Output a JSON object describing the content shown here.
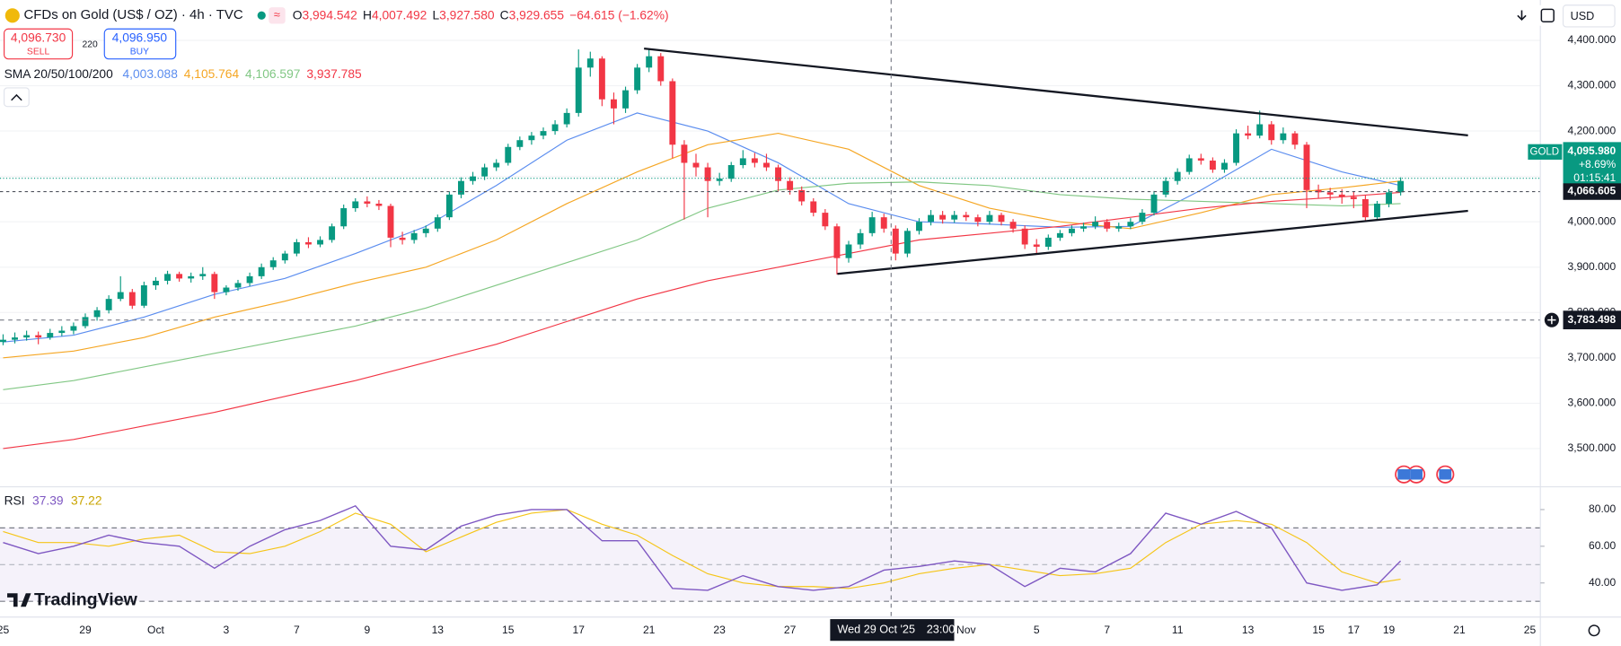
{
  "header": {
    "title": "CFDs on Gold (US$ / OZ) · 4h · TVC",
    "ohlc": [
      {
        "key": "O",
        "value": "3,994.542"
      },
      {
        "key": "H",
        "value": "4,007.492"
      },
      {
        "key": "L",
        "value": "3,927.580"
      },
      {
        "key": "C",
        "value": "3,929.655"
      }
    ],
    "change": "−64.615 (−1.62%)"
  },
  "trade": {
    "sell_price": "4,096.730",
    "sell": "SELL",
    "spread": "220",
    "buy_price": "4,096.950",
    "buy": "BUY"
  },
  "currency": "USD",
  "brand": "TradingView",
  "chart_data": {
    "type": "candlestick",
    "up_color": "#089981",
    "down_color": "#f23645",
    "grid": true,
    "ylim": [
      3418,
      4489
    ],
    "yticks": [
      {
        "value": 4400,
        "label": "4,400.000"
      },
      {
        "value": 4300,
        "label": "4,300.000"
      },
      {
        "value": 4200,
        "label": "4,200.000"
      },
      {
        "value": 4100,
        "label": "4,100.000"
      },
      {
        "value": 4000,
        "label": "4,000.000"
      },
      {
        "value": 3900,
        "label": "3,900.000"
      },
      {
        "value": 3800,
        "label": "3,800.000"
      },
      {
        "value": 3700,
        "label": "3,700.000"
      },
      {
        "value": 3600,
        "label": "3,600.000"
      },
      {
        "value": 3500,
        "label": "3,500.000"
      }
    ],
    "categories": [
      "25",
      null,
      null,
      null,
      null,
      null,
      null,
      "29",
      null,
      null,
      null,
      null,
      null,
      "Oct",
      null,
      null,
      null,
      null,
      null,
      "3",
      null,
      null,
      null,
      null,
      null,
      "7",
      null,
      null,
      null,
      null,
      null,
      "9",
      null,
      null,
      null,
      null,
      null,
      "13",
      null,
      null,
      null,
      null,
      null,
      "15",
      null,
      null,
      null,
      null,
      null,
      "17",
      null,
      null,
      null,
      null,
      null,
      "21",
      null,
      null,
      null,
      null,
      null,
      "23",
      null,
      null,
      null,
      null,
      null,
      "27",
      null,
      null,
      null,
      null,
      null,
      null,
      null,
      null,
      null,
      null,
      null,
      null,
      null,
      null,
      "Nov",
      null,
      null,
      null,
      null,
      null,
      "5",
      null,
      null,
      null,
      null,
      null,
      "7",
      null,
      null,
      null,
      null,
      null,
      "11",
      null,
      null,
      null,
      null,
      null,
      "13",
      null,
      null,
      null,
      null,
      null,
      "15",
      null,
      null,
      "17",
      null,
      null,
      "19",
      null,
      null,
      null,
      null,
      null,
      "21",
      null,
      null,
      null,
      null,
      null,
      "25",
      null
    ],
    "candles": [
      [
        3735,
        3752,
        3728,
        3740
      ],
      [
        3740,
        3756,
        3732,
        3745
      ],
      [
        3745,
        3760,
        3738,
        3750
      ],
      [
        3750,
        3758,
        3730,
        3745
      ],
      [
        3745,
        3764,
        3740,
        3755
      ],
      [
        3755,
        3770,
        3748,
        3760
      ],
      [
        3760,
        3778,
        3752,
        3770
      ],
      [
        3770,
        3798,
        3765,
        3790
      ],
      [
        3790,
        3812,
        3782,
        3805
      ],
      [
        3805,
        3838,
        3798,
        3830
      ],
      [
        3830,
        3880,
        3825,
        3845
      ],
      [
        3845,
        3852,
        3808,
        3815
      ],
      [
        3815,
        3868,
        3810,
        3860
      ],
      [
        3860,
        3878,
        3850,
        3870
      ],
      [
        3870,
        3892,
        3862,
        3885
      ],
      [
        3885,
        3890,
        3868,
        3875
      ],
      [
        3875,
        3888,
        3866,
        3880
      ],
      [
        3880,
        3900,
        3872,
        3885
      ],
      [
        3885,
        3890,
        3830,
        3845
      ],
      [
        3845,
        3860,
        3838,
        3855
      ],
      [
        3855,
        3872,
        3848,
        3865
      ],
      [
        3865,
        3888,
        3858,
        3880
      ],
      [
        3880,
        3908,
        3874,
        3900
      ],
      [
        3900,
        3922,
        3894,
        3915
      ],
      [
        3915,
        3936,
        3908,
        3930
      ],
      [
        3930,
        3962,
        3924,
        3955
      ],
      [
        3955,
        3966,
        3942,
        3950
      ],
      [
        3950,
        3968,
        3944,
        3960
      ],
      [
        3960,
        3996,
        3954,
        3990
      ],
      [
        3990,
        4038,
        3984,
        4030
      ],
      [
        4030,
        4052,
        4022,
        4045
      ],
      [
        4045,
        4056,
        4032,
        4040
      ],
      [
        4040,
        4048,
        4026,
        4035
      ],
      [
        4035,
        4040,
        3944,
        3965
      ],
      [
        3965,
        3978,
        3950,
        3960
      ],
      [
        3960,
        3982,
        3952,
        3975
      ],
      [
        3975,
        3992,
        3966,
        3985
      ],
      [
        3985,
        4016,
        3978,
        4010
      ],
      [
        4010,
        4066,
        4004,
        4060
      ],
      [
        4060,
        4098,
        4052,
        4090
      ],
      [
        4090,
        4110,
        4082,
        4100
      ],
      [
        4100,
        4128,
        4092,
        4120
      ],
      [
        4120,
        4138,
        4112,
        4130
      ],
      [
        4130,
        4172,
        4124,
        4165
      ],
      [
        4165,
        4188,
        4158,
        4180
      ],
      [
        4180,
        4198,
        4170,
        4190
      ],
      [
        4190,
        4208,
        4182,
        4200
      ],
      [
        4200,
        4224,
        4192,
        4215
      ],
      [
        4215,
        4250,
        4208,
        4240
      ],
      [
        4240,
        4380,
        4232,
        4340
      ],
      [
        4340,
        4375,
        4320,
        4360
      ],
      [
        4360,
        4365,
        4255,
        4270
      ],
      [
        4270,
        4285,
        4215,
        4250
      ],
      [
        4250,
        4298,
        4240,
        4290
      ],
      [
        4290,
        4348,
        4282,
        4340
      ],
      [
        4340,
        4380,
        4330,
        4365
      ],
      [
        4365,
        4372,
        4300,
        4310
      ],
      [
        4310,
        4316,
        4140,
        4170
      ],
      [
        4170,
        4180,
        4005,
        4130
      ],
      [
        4130,
        4150,
        4100,
        4120
      ],
      [
        4120,
        4130,
        4010,
        4090
      ],
      [
        4090,
        4108,
        4080,
        4095
      ],
      [
        4095,
        4132,
        4088,
        4125
      ],
      [
        4125,
        4158,
        4118,
        4140
      ],
      [
        4140,
        4152,
        4120,
        4130
      ],
      [
        4130,
        4150,
        4112,
        4120
      ],
      [
        4120,
        4126,
        4068,
        4090
      ],
      [
        4090,
        4098,
        4060,
        4070
      ],
      [
        4070,
        4078,
        4036,
        4045
      ],
      [
        4045,
        4052,
        4012,
        4020
      ],
      [
        4020,
        4028,
        3982,
        3990
      ],
      [
        3990,
        3996,
        3884,
        3920
      ],
      [
        3920,
        3958,
        3910,
        3950
      ],
      [
        3950,
        3984,
        3940,
        3975
      ],
      [
        3975,
        4022,
        3968,
        4010
      ],
      [
        4010,
        4018,
        3976,
        3985
      ],
      [
        3985,
        3992,
        3915,
        3930
      ],
      [
        3930,
        3986,
        3922,
        3980
      ],
      [
        3980,
        4008,
        3972,
        4000
      ],
      [
        4000,
        4026,
        3992,
        4015
      ],
      [
        4015,
        4024,
        3996,
        4005
      ],
      [
        4005,
        4024,
        3998,
        4015
      ],
      [
        4015,
        4022,
        4002,
        4010
      ],
      [
        4010,
        4016,
        3990,
        4000
      ],
      [
        4000,
        4024,
        3994,
        4015
      ],
      [
        4015,
        4020,
        3992,
        4000
      ],
      [
        4000,
        4006,
        3976,
        3985
      ],
      [
        3985,
        3992,
        3940,
        3950
      ],
      [
        3950,
        3962,
        3930,
        3945
      ],
      [
        3945,
        3972,
        3938,
        3965
      ],
      [
        3965,
        3982,
        3958,
        3975
      ],
      [
        3975,
        3992,
        3968,
        3985
      ],
      [
        3985,
        3998,
        3978,
        3990
      ],
      [
        3990,
        4012,
        3984,
        4000
      ],
      [
        4000,
        4006,
        3978,
        3985
      ],
      [
        3985,
        3998,
        3978,
        3990
      ],
      [
        3990,
        4008,
        3984,
        4000
      ],
      [
        4000,
        4028,
        3994,
        4020
      ],
      [
        4020,
        4068,
        4014,
        4060
      ],
      [
        4060,
        4098,
        4054,
        4090
      ],
      [
        4090,
        4118,
        4082,
        4110
      ],
      [
        4110,
        4148,
        4104,
        4140
      ],
      [
        4140,
        4150,
        4126,
        4135
      ],
      [
        4135,
        4142,
        4108,
        4115
      ],
      [
        4115,
        4138,
        4108,
        4130
      ],
      [
        4130,
        4204,
        4124,
        4195
      ],
      [
        4195,
        4212,
        4182,
        4190
      ],
      [
        4190,
        4245,
        4184,
        4215
      ],
      [
        4215,
        4222,
        4170,
        4180
      ],
      [
        4180,
        4208,
        4172,
        4195
      ],
      [
        4195,
        4200,
        4160,
        4170
      ],
      [
        4170,
        4176,
        4030,
        4070
      ],
      [
        4070,
        4082,
        4052,
        4065
      ],
      [
        4065,
        4075,
        4048,
        4060
      ],
      [
        4060,
        4072,
        4040,
        4055
      ],
      [
        4055,
        4066,
        4030,
        4050
      ],
      [
        4050,
        4058,
        4002,
        4010
      ],
      [
        4010,
        4046,
        4004,
        4040
      ],
      [
        4040,
        4072,
        4032,
        4065
      ],
      [
        4065,
        4098,
        4058,
        4090
      ],
      null,
      null,
      null,
      null,
      null,
      null,
      null,
      null,
      null,
      null,
      null,
      null
    ],
    "sma": {
      "label": "SMA 20/50/100/200",
      "series": [
        {
          "color": "#5b8def",
          "value_label": "4,003.088",
          "x": [
            0,
            6,
            12,
            18,
            24,
            30,
            36,
            42,
            48,
            54,
            60,
            66,
            72,
            78,
            84,
            90,
            96,
            102,
            108,
            114,
            119
          ],
          "values": [
            3735,
            3750,
            3790,
            3840,
            3875,
            3930,
            3990,
            4080,
            4180,
            4240,
            4200,
            4130,
            4040,
            4000,
            3995,
            3988,
            3990,
            4070,
            4160,
            4110,
            4080
          ]
        },
        {
          "color": "#f5a623",
          "value_label": "4,105.764",
          "x": [
            0,
            6,
            12,
            18,
            24,
            30,
            36,
            42,
            48,
            54,
            60,
            66,
            72,
            78,
            84,
            90,
            96,
            102,
            108,
            114,
            119
          ],
          "values": [
            3700,
            3715,
            3745,
            3790,
            3825,
            3865,
            3900,
            3960,
            4040,
            4110,
            4170,
            4195,
            4160,
            4080,
            4030,
            4000,
            3985,
            4020,
            4060,
            4075,
            4090
          ]
        },
        {
          "color": "#81c784",
          "value_label": "4,106.597",
          "x": [
            0,
            6,
            12,
            18,
            24,
            30,
            36,
            42,
            48,
            54,
            60,
            66,
            72,
            78,
            84,
            90,
            96,
            102,
            108,
            114,
            119
          ],
          "values": [
            3630,
            3650,
            3680,
            3710,
            3740,
            3770,
            3810,
            3860,
            3910,
            3960,
            4030,
            4070,
            4085,
            4088,
            4080,
            4060,
            4050,
            4045,
            4040,
            4035,
            4040
          ]
        },
        {
          "color": "#f23645",
          "value_label": "3,937.785",
          "x": [
            0,
            6,
            12,
            18,
            24,
            30,
            36,
            42,
            48,
            54,
            60,
            66,
            72,
            78,
            84,
            90,
            96,
            102,
            108,
            114,
            119
          ],
          "values": [
            3500,
            3520,
            3550,
            3580,
            3615,
            3650,
            3690,
            3730,
            3780,
            3830,
            3870,
            3900,
            3930,
            3960,
            3975,
            3990,
            4010,
            4030,
            4045,
            4055,
            4065
          ]
        }
      ]
    },
    "last_price": {
      "value": 4095.98,
      "label": "4,095.980",
      "symbol": "GOLD",
      "change": "+8.69%",
      "countdown": "01:15:41",
      "color": "#089981"
    },
    "marked_price": {
      "value": 4066.605,
      "label": "4,066.605"
    },
    "crosshair": {
      "date": "Wed 29 Oct '25",
      "time": "23:00",
      "price": {
        "value": 3783.498,
        "label": "3,783.498"
      }
    },
    "rsi": {
      "label": "RSI",
      "value_label": "37.39",
      "ma_label": "37.22",
      "color": "#7e57c2",
      "ma_color": "#f5c518",
      "ylim": [
        21.4,
        90.7
      ],
      "band": [
        30,
        70
      ],
      "midline": 50,
      "yticks": [
        {
          "value": 80,
          "label": "80.00"
        },
        {
          "value": 60,
          "label": "60.00"
        },
        {
          "value": 40,
          "label": "40.00"
        }
      ],
      "x": [
        0,
        3,
        6,
        9,
        12,
        15,
        18,
        21,
        24,
        27,
        30,
        33,
        36,
        39,
        42,
        45,
        48,
        51,
        54,
        57,
        60,
        63,
        66,
        69,
        72,
        75,
        78,
        81,
        84,
        87,
        90,
        93,
        96,
        99,
        102,
        105,
        108,
        111,
        114,
        117,
        119
      ],
      "values": [
        62,
        56,
        60,
        66,
        62,
        60,
        48,
        60,
        69,
        74,
        82,
        60,
        58,
        71,
        77,
        80,
        80,
        63,
        63,
        37,
        36,
        44,
        38,
        36,
        38,
        47,
        49,
        52,
        50,
        38,
        48,
        46,
        56,
        78,
        72,
        79,
        70,
        40,
        36,
        39,
        52
      ],
      "ma": [
        68,
        62,
        62,
        60,
        64,
        66,
        57,
        56,
        60,
        68,
        78,
        72,
        57,
        65,
        73,
        78,
        80,
        72,
        66,
        55,
        45,
        40,
        38,
        38,
        37,
        40,
        45,
        48,
        50,
        47,
        44,
        45,
        48,
        62,
        72,
        74,
        72,
        62,
        46,
        40,
        42
      ]
    }
  }
}
